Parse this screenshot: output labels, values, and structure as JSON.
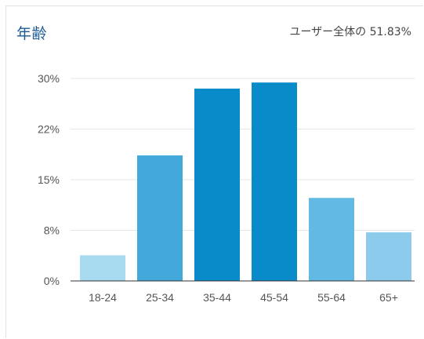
{
  "header": {
    "title": "年齢",
    "share": "ユーザー全体の 51.83%"
  },
  "chart_data": {
    "type": "bar",
    "title": "年齢",
    "categories": [
      "18-24",
      "25-34",
      "35-44",
      "45-54",
      "55-64",
      "65+"
    ],
    "values": [
      3.8,
      18.6,
      28.5,
      29.4,
      12.3,
      7.2
    ],
    "colors": [
      "#a8daf0",
      "#42a9da",
      "#0a8bc9",
      "#0a8bc9",
      "#62bae4",
      "#8dcbed"
    ],
    "y_ticks": [
      "0%",
      "8%",
      "15%",
      "22%",
      "30%"
    ],
    "ylim": [
      0,
      30
    ],
    "grid": true,
    "legend": "none"
  }
}
